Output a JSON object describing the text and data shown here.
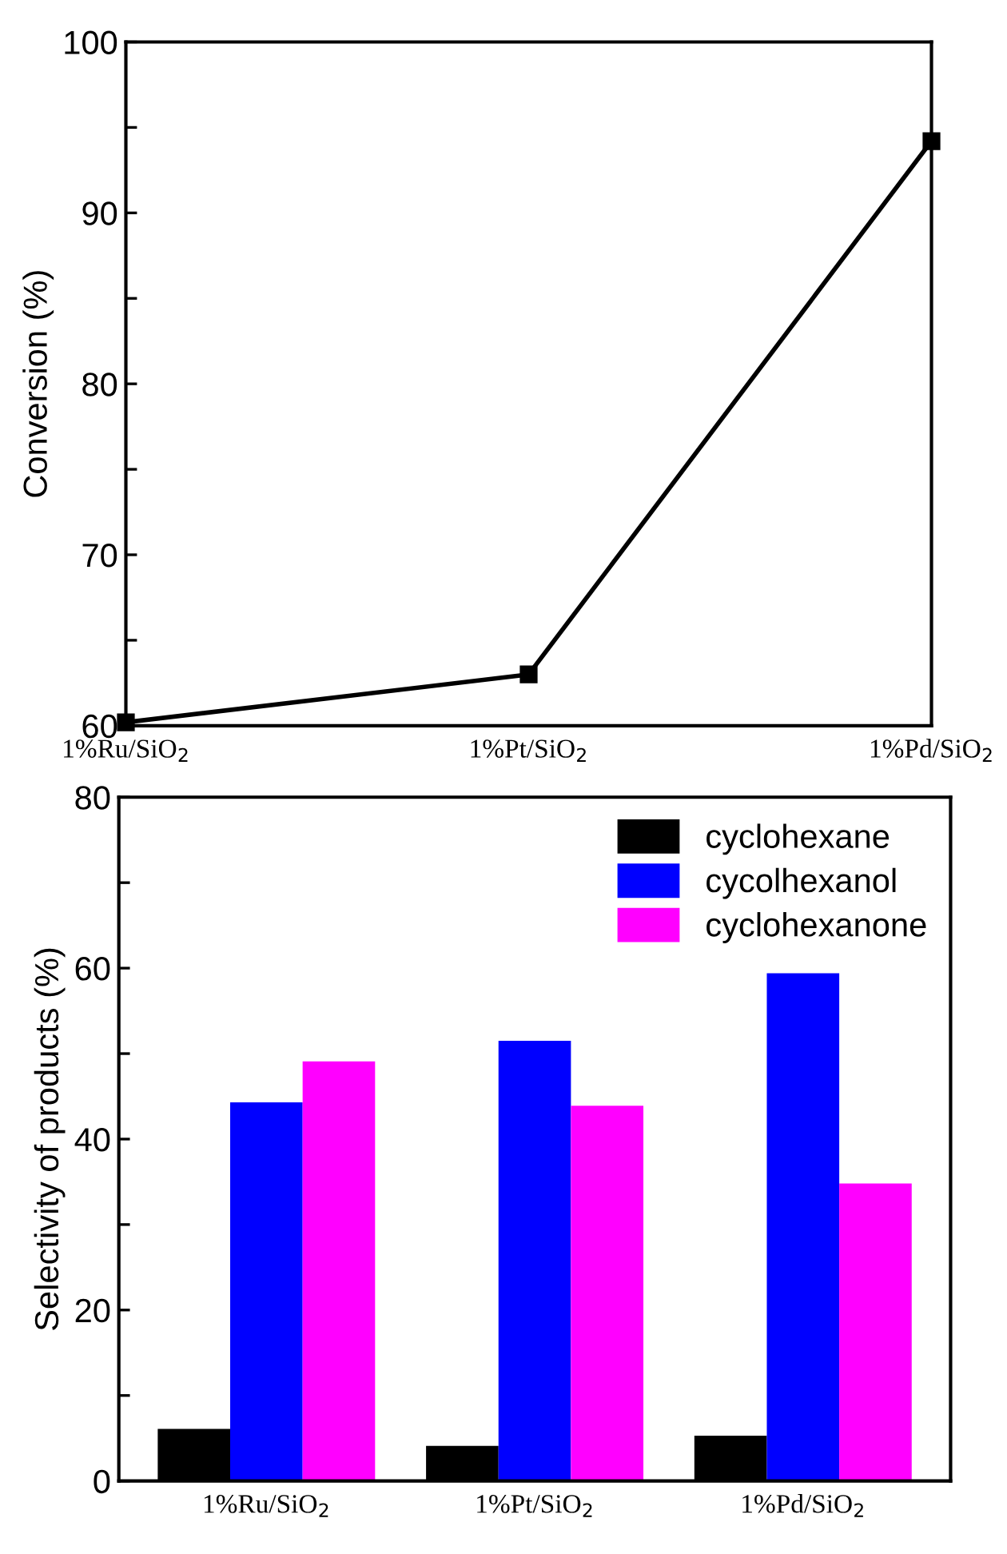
{
  "chart_data": [
    {
      "type": "line",
      "ylabel": "Conversion (%)",
      "categories": [
        "1%Ru/SiO$_{2}$",
        "1%Pt/SiO$_{2}$",
        "1%Pd/SiO$_{2}$"
      ],
      "series": [
        {
          "color": "#000000",
          "values": [
            60.2,
            63.0,
            94.2
          ]
        }
      ],
      "ylim": [
        60,
        100
      ],
      "yticks": [
        60,
        {
          "value": 65,
          "label": null
        },
        70,
        {
          "value": 75,
          "label": null
        },
        80,
        {
          "value": 85,
          "label": null
        },
        90,
        {
          "value": 95,
          "label": null
        },
        100
      ],
      "marker": "square",
      "line_style": "solid",
      "grid": false,
      "legend": false
    },
    {
      "type": "bar",
      "ylabel": "Selectivity of products (%)",
      "categories": [
        "1%Ru/SiO$_{2}$",
        "1%Pt/SiO$_{2}$",
        "1%Pd/SiO$_{2}$"
      ],
      "series": [
        {
          "name": "cyclohexane",
          "color": "#000000",
          "values": [
            6.1,
            4.1,
            5.3
          ]
        },
        {
          "name": "cycolhexanol",
          "color": "#0000ff",
          "values": [
            44.3,
            51.5,
            59.4
          ]
        },
        {
          "name": "cyclohexanone",
          "color": "#ff00ff",
          "values": [
            49.1,
            43.9,
            34.8
          ]
        }
      ],
      "ylim": [
        0,
        80
      ],
      "yticks": [
        0,
        {
          "value": 10,
          "label": null
        },
        20,
        {
          "value": 30,
          "label": null
        },
        40,
        {
          "value": 50,
          "label": null
        },
        60,
        {
          "value": 70,
          "label": null
        },
        80
      ],
      "grid": false,
      "legend": "top right"
    }
  ]
}
